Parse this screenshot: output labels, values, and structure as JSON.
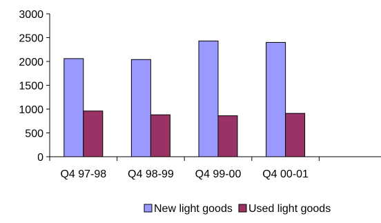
{
  "chart_data": {
    "type": "bar",
    "title": "",
    "xlabel": "",
    "ylabel": "",
    "categories": [
      "Q4 97-98",
      "Q4 98-99",
      "Q4 99-00",
      "Q4 00-01",
      ""
    ],
    "series": [
      {
        "name": "New light goods",
        "color": "#9999ff",
        "values": [
          2060,
          2040,
          2430,
          2400,
          null
        ]
      },
      {
        "name": "Used light goods",
        "color": "#993366",
        "values": [
          960,
          880,
          860,
          910,
          null
        ]
      }
    ],
    "ylim": [
      0,
      3000
    ],
    "yticks": [
      0,
      500,
      1000,
      1500,
      2000,
      2500,
      3000
    ],
    "grid": false,
    "legend_position": "bottom"
  }
}
